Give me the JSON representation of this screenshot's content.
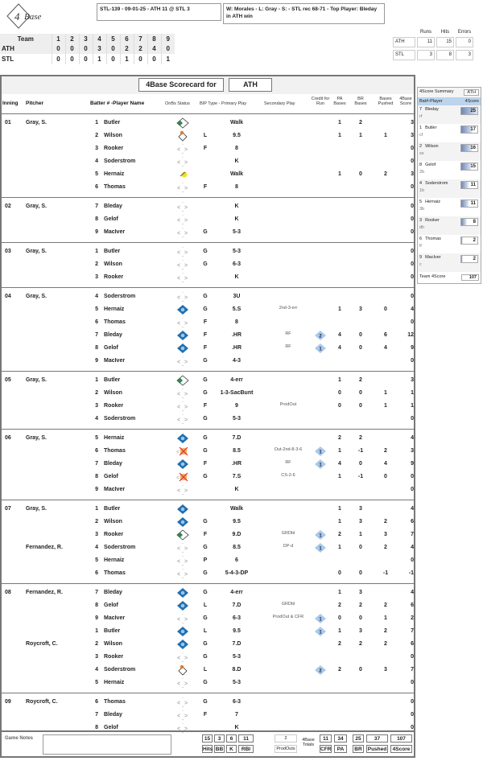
{
  "header": {
    "logo_text": "4Base",
    "game_line": "STL-139 - 09-01-25 - ATH 11 @ STL 3",
    "result_line": "W: Morales - L: Gray - S:  - STL rec 68-71 - Top Player: Bleday in ATH win"
  },
  "linescore": {
    "header": [
      "Team",
      "1",
      "2",
      "3",
      "4",
      "5",
      "6",
      "7",
      "8",
      "9"
    ],
    "rows": [
      [
        "ATH",
        "0",
        "0",
        "0",
        "3",
        "0",
        "2",
        "2",
        "4",
        "0"
      ],
      [
        "STL",
        "0",
        "0",
        "0",
        "1",
        "0",
        "1",
        "0",
        "0",
        "1"
      ]
    ]
  },
  "rhe": {
    "headers": [
      "Runs",
      "Hits",
      "Errors"
    ],
    "rows": [
      [
        "ATH",
        "11",
        "15",
        "0"
      ],
      [
        "STL",
        "3",
        "8",
        "3"
      ]
    ]
  },
  "scorecard": {
    "title": "4Base Scorecard for",
    "team": "ATH",
    "columns": {
      "inning": "Inning",
      "pitcher": "Pitcher",
      "batter": "Batter # -Player Name",
      "onbase": "OnBs Status",
      "bip": "BIP Type - Primary Play",
      "secondary": "Secondary Play",
      "credit": "Credit for Run",
      "pa": "PA Bases",
      "br": "BR Bases",
      "pushed": "Bases Pushed",
      "score": "4Base Score"
    },
    "colors": {
      "scored": "#1f6fb0",
      "first": "#2e8b4e",
      "advanced": "#e07b2a",
      "walk": "#f2e21a",
      "credit": "#a9c9ea"
    },
    "innings": [
      {
        "inning": "01",
        "rows": [
          {
            "pitcher": "Gray, S.",
            "num": "1",
            "name": "Butler",
            "onbase": "first",
            "bip": "",
            "primary": "Walk",
            "secondary": "",
            "credit": "",
            "pa": "1",
            "br": "2",
            "pushed": "",
            "score": "3"
          },
          {
            "pitcher": "",
            "num": "2",
            "name": "Wilson",
            "onbase": "advanced",
            "bip": "L",
            "primary": "9.5",
            "secondary": "",
            "credit": "",
            "pa": "1",
            "br": "1",
            "pushed": "1",
            "score": "3"
          },
          {
            "pitcher": "",
            "num": "3",
            "name": "Rooker",
            "onbase": "empty",
            "bip": "F",
            "primary": "8",
            "secondary": "",
            "credit": "",
            "pa": "",
            "br": "",
            "pushed": "",
            "score": "0"
          },
          {
            "pitcher": "",
            "num": "4",
            "name": "Soderstrom",
            "onbase": "empty",
            "bip": "",
            "primary": "K",
            "secondary": "",
            "credit": "",
            "pa": "",
            "br": "",
            "pushed": "",
            "score": "0"
          },
          {
            "pitcher": "",
            "num": "5",
            "name": "Hernaiz",
            "onbase": "walk",
            "bip": "",
            "primary": "Walk",
            "secondary": "",
            "credit": "",
            "pa": "1",
            "br": "0",
            "pushed": "2",
            "score": "3"
          },
          {
            "pitcher": "",
            "num": "6",
            "name": "Thomas",
            "onbase": "empty",
            "bip": "F",
            "primary": "8",
            "secondary": "",
            "credit": "",
            "pa": "",
            "br": "",
            "pushed": "",
            "score": "0"
          }
        ]
      },
      {
        "inning": "02",
        "rows": [
          {
            "pitcher": "Gray, S.",
            "num": "7",
            "name": "Bleday",
            "onbase": "empty",
            "bip": "",
            "primary": "K",
            "secondary": "",
            "credit": "",
            "pa": "",
            "br": "",
            "pushed": "",
            "score": "0"
          },
          {
            "pitcher": "",
            "num": "8",
            "name": "Gelof",
            "onbase": "empty",
            "bip": "",
            "primary": "K",
            "secondary": "",
            "credit": "",
            "pa": "",
            "br": "",
            "pushed": "",
            "score": "0"
          },
          {
            "pitcher": "",
            "num": "9",
            "name": "MacIver",
            "onbase": "empty",
            "bip": "G",
            "primary": "5-3",
            "secondary": "",
            "credit": "",
            "pa": "",
            "br": "",
            "pushed": "",
            "score": "0"
          }
        ]
      },
      {
        "inning": "03",
        "rows": [
          {
            "pitcher": "Gray, S.",
            "num": "1",
            "name": "Butler",
            "onbase": "empty",
            "bip": "G",
            "primary": "5-3",
            "secondary": "",
            "credit": "",
            "pa": "",
            "br": "",
            "pushed": "",
            "score": "0"
          },
          {
            "pitcher": "",
            "num": "2",
            "name": "Wilson",
            "onbase": "empty",
            "bip": "G",
            "primary": "6-3",
            "secondary": "",
            "credit": "",
            "pa": "",
            "br": "",
            "pushed": "",
            "score": "0"
          },
          {
            "pitcher": "",
            "num": "3",
            "name": "Rooker",
            "onbase": "empty",
            "bip": "",
            "primary": "K",
            "secondary": "",
            "credit": "",
            "pa": "",
            "br": "",
            "pushed": "",
            "score": "0"
          }
        ]
      },
      {
        "inning": "04",
        "rows": [
          {
            "pitcher": "Gray, S.",
            "num": "4",
            "name": "Soderstrom",
            "onbase": "empty",
            "bip": "G",
            "primary": "3U",
            "secondary": "",
            "credit": "",
            "pa": "",
            "br": "",
            "pushed": "",
            "score": "0"
          },
          {
            "pitcher": "",
            "num": "5",
            "name": "Hernaiz",
            "onbase": "scored",
            "bip": "G",
            "primary": "5.S",
            "secondary": "2nd-3-err",
            "credit": "",
            "pa": "1",
            "br": "3",
            "pushed": "0",
            "score": "4"
          },
          {
            "pitcher": "",
            "num": "6",
            "name": "Thomas",
            "onbase": "empty",
            "bip": "F",
            "primary": "8",
            "secondary": "",
            "credit": "",
            "pa": "",
            "br": "",
            "pushed": "",
            "score": "0"
          },
          {
            "pitcher": "",
            "num": "7",
            "name": "Bleday",
            "onbase": "scored",
            "bip": "F",
            "primary": ".HR",
            "secondary": "RF",
            "credit": "2",
            "pa": "4",
            "br": "0",
            "pushed": "6",
            "score": "12"
          },
          {
            "pitcher": "",
            "num": "8",
            "name": "Gelof",
            "onbase": "scored",
            "bip": "F",
            "primary": ".HR",
            "secondary": "RF",
            "credit": "1",
            "pa": "4",
            "br": "0",
            "pushed": "4",
            "score": "9"
          },
          {
            "pitcher": "",
            "num": "9",
            "name": "MacIver",
            "onbase": "empty",
            "bip": "G",
            "primary": "4-3",
            "secondary": "",
            "credit": "",
            "pa": "",
            "br": "",
            "pushed": "",
            "score": "0"
          }
        ]
      },
      {
        "inning": "05",
        "rows": [
          {
            "pitcher": "Gray, S.",
            "num": "1",
            "name": "Butler",
            "onbase": "first",
            "bip": "G",
            "primary": "4-err",
            "secondary": "",
            "credit": "",
            "pa": "1",
            "br": "2",
            "pushed": "",
            "score": "3"
          },
          {
            "pitcher": "",
            "num": "2",
            "name": "Wilson",
            "onbase": "empty",
            "bip": "G",
            "primary": "1-3-SacBunt",
            "secondary": "",
            "credit": "",
            "pa": "0",
            "br": "0",
            "pushed": "1",
            "score": "1"
          },
          {
            "pitcher": "",
            "num": "3",
            "name": "Rooker",
            "onbase": "empty",
            "bip": "F",
            "primary": "9",
            "secondary": "ProdOut",
            "credit": "",
            "pa": "0",
            "br": "0",
            "pushed": "1",
            "score": "1"
          },
          {
            "pitcher": "",
            "num": "4",
            "name": "Soderstrom",
            "onbase": "empty",
            "bip": "G",
            "primary": "5-3",
            "secondary": "",
            "credit": "",
            "pa": "",
            "br": "",
            "pushed": "",
            "score": "0"
          }
        ]
      },
      {
        "inning": "06",
        "rows": [
          {
            "pitcher": "Gray, S.",
            "num": "5",
            "name": "Hernaiz",
            "onbase": "scored",
            "bip": "G",
            "primary": "7.D",
            "secondary": "",
            "credit": "",
            "pa": "2",
            "br": "2",
            "pushed": "",
            "score": "4"
          },
          {
            "pitcher": "",
            "num": "6",
            "name": "Thomas",
            "onbase": "out",
            "bip": "G",
            "primary": "8.5",
            "secondary": "Out-2nd-8-3-6",
            "credit": "1",
            "pa": "1",
            "br": "-1",
            "pushed": "2",
            "score": "3"
          },
          {
            "pitcher": "",
            "num": "7",
            "name": "Bleday",
            "onbase": "scored",
            "bip": "F",
            "primary": ".HR",
            "secondary": "RF",
            "credit": "1",
            "pa": "4",
            "br": "0",
            "pushed": "4",
            "score": "9"
          },
          {
            "pitcher": "",
            "num": "8",
            "name": "Gelof",
            "onbase": "out",
            "bip": "G",
            "primary": "7.S",
            "secondary": "CS-2-6",
            "credit": "",
            "pa": "1",
            "br": "-1",
            "pushed": "0",
            "score": "0"
          },
          {
            "pitcher": "",
            "num": "9",
            "name": "MacIver",
            "onbase": "empty",
            "bip": "",
            "primary": "K",
            "secondary": "",
            "credit": "",
            "pa": "",
            "br": "",
            "pushed": "",
            "score": "0"
          }
        ]
      },
      {
        "inning": "07",
        "rows": [
          {
            "pitcher": "Gray, S.",
            "num": "1",
            "name": "Butler",
            "onbase": "scored",
            "bip": "",
            "primary": "Walk",
            "secondary": "",
            "credit": "",
            "pa": "1",
            "br": "3",
            "pushed": "",
            "score": "4"
          },
          {
            "pitcher": "",
            "num": "2",
            "name": "Wilson",
            "onbase": "scored",
            "bip": "G",
            "primary": "9.5",
            "secondary": "",
            "credit": "",
            "pa": "1",
            "br": "3",
            "pushed": "2",
            "score": "6"
          },
          {
            "pitcher": "",
            "num": "3",
            "name": "Rooker",
            "onbase": "first",
            "bip": "F",
            "primary": "9.D",
            "secondary": "GRDbl",
            "credit": "1",
            "pa": "2",
            "br": "1",
            "pushed": "3",
            "score": "7"
          },
          {
            "pitcher": "Fernandez, R.",
            "num": "4",
            "name": "Soderstrom",
            "onbase": "empty",
            "bip": "G",
            "primary": "8.5",
            "secondary": "DP-d",
            "credit": "1",
            "pa": "1",
            "br": "0",
            "pushed": "2",
            "score": "4"
          },
          {
            "pitcher": "",
            "num": "5",
            "name": "Hernaiz",
            "onbase": "empty",
            "bip": "P",
            "primary": "6",
            "secondary": "",
            "credit": "",
            "pa": "",
            "br": "",
            "pushed": "",
            "score": "0"
          },
          {
            "pitcher": "",
            "num": "6",
            "name": "Thomas",
            "onbase": "empty",
            "bip": "G",
            "primary": "5-4-3-DP",
            "secondary": "",
            "credit": "",
            "pa": "0",
            "br": "0",
            "pushed": "-1",
            "score": "-1"
          }
        ]
      },
      {
        "inning": "08",
        "rows": [
          {
            "pitcher": "Fernandez, R.",
            "num": "7",
            "name": "Bleday",
            "onbase": "scored",
            "bip": "G",
            "primary": "4-err",
            "secondary": "",
            "credit": "",
            "pa": "1",
            "br": "3",
            "pushed": "",
            "score": "4"
          },
          {
            "pitcher": "",
            "num": "8",
            "name": "Gelof",
            "onbase": "scored",
            "bip": "L",
            "primary": "7.D",
            "secondary": "GRDbl",
            "credit": "",
            "pa": "2",
            "br": "2",
            "pushed": "2",
            "score": "6"
          },
          {
            "pitcher": "",
            "num": "9",
            "name": "MacIver",
            "onbase": "empty",
            "bip": "G",
            "primary": "6-3",
            "secondary": "ProdOut & CFR",
            "credit": "1",
            "pa": "0",
            "br": "0",
            "pushed": "1",
            "score": "2"
          },
          {
            "pitcher": "",
            "num": "1",
            "name": "Butler",
            "onbase": "scored",
            "bip": "L",
            "primary": "9.5",
            "secondary": "",
            "credit": "1",
            "pa": "1",
            "br": "3",
            "pushed": "2",
            "score": "7"
          },
          {
            "pitcher": "Roycroft, C.",
            "num": "2",
            "name": "Wilson",
            "onbase": "scored",
            "bip": "G",
            "primary": "7.D",
            "secondary": "",
            "credit": "",
            "pa": "2",
            "br": "2",
            "pushed": "2",
            "score": "6"
          },
          {
            "pitcher": "",
            "num": "3",
            "name": "Rooker",
            "onbase": "empty",
            "bip": "G",
            "primary": "5-3",
            "secondary": "",
            "credit": "",
            "pa": "",
            "br": "",
            "pushed": "",
            "score": "0"
          },
          {
            "pitcher": "",
            "num": "4",
            "name": "Soderstrom",
            "onbase": "advanced",
            "bip": "L",
            "primary": "8.D",
            "secondary": "",
            "credit": "2",
            "pa": "2",
            "br": "0",
            "pushed": "3",
            "score": "7"
          },
          {
            "pitcher": "",
            "num": "5",
            "name": "Hernaiz",
            "onbase": "empty",
            "bip": "G",
            "primary": "5-3",
            "secondary": "",
            "credit": "",
            "pa": "",
            "br": "",
            "pushed": "",
            "score": "0"
          }
        ]
      },
      {
        "inning": "09",
        "rows": [
          {
            "pitcher": "Roycroft, C.",
            "num": "6",
            "name": "Thomas",
            "onbase": "empty",
            "bip": "G",
            "primary": "6-3",
            "secondary": "",
            "credit": "",
            "pa": "",
            "br": "",
            "pushed": "",
            "score": "0"
          },
          {
            "pitcher": "",
            "num": "7",
            "name": "Bleday",
            "onbase": "empty",
            "bip": "F",
            "primary": "7",
            "secondary": "",
            "credit": "",
            "pa": "",
            "br": "",
            "pushed": "",
            "score": "0"
          },
          {
            "pitcher": "",
            "num": "8",
            "name": "Gelof",
            "onbase": "empty",
            "bip": "",
            "primary": "K",
            "secondary": "",
            "credit": "",
            "pa": "",
            "br": "",
            "pushed": "",
            "score": "0"
          }
        ]
      }
    ]
  },
  "footer": {
    "notes_label": "Game Notes",
    "notes_value": "",
    "stats": [
      {
        "label": "Hits",
        "value": "15"
      },
      {
        "label": "BB",
        "value": "3"
      },
      {
        "label": "K",
        "value": "6"
      },
      {
        "label": "RBI",
        "value": "11"
      }
    ],
    "prodouts": {
      "label": "ProdOuts",
      "value": "2"
    },
    "totals_label": "4Base Totals",
    "totals": [
      {
        "label": "CFR",
        "value": "11"
      },
      {
        "label": "PA",
        "value": "34"
      },
      {
        "label": "BR",
        "value": "25"
      },
      {
        "label": "Pushed",
        "value": "37"
      },
      {
        "label": "4Score",
        "value": "107"
      }
    ]
  },
  "summary": {
    "title": "4Score Summary",
    "team": "ATH",
    "col_player": "Bat#-Player",
    "col_score": "4Score",
    "players": [
      {
        "num": "7",
        "name": "Bleday",
        "pos": "rf",
        "score": 25
      },
      {
        "num": "1",
        "name": "Butler",
        "pos": "cf",
        "score": 17
      },
      {
        "num": "2",
        "name": "Wilson",
        "pos": "ss",
        "score": 16
      },
      {
        "num": "8",
        "name": "Gelof",
        "pos": "2b",
        "score": 15
      },
      {
        "num": "4",
        "name": "Soderstrom",
        "pos": "1b",
        "score": 11
      },
      {
        "num": "5",
        "name": "Hernaiz",
        "pos": "3b",
        "score": 11
      },
      {
        "num": "3",
        "name": "Rooker",
        "pos": "dh",
        "score": 8
      },
      {
        "num": "6",
        "name": "Thomas",
        "pos": "lf",
        "score": 2
      },
      {
        "num": "9",
        "name": "MacIver",
        "pos": "c",
        "score": 2
      }
    ],
    "team_label": "Team 4Score",
    "team_score": "107"
  }
}
